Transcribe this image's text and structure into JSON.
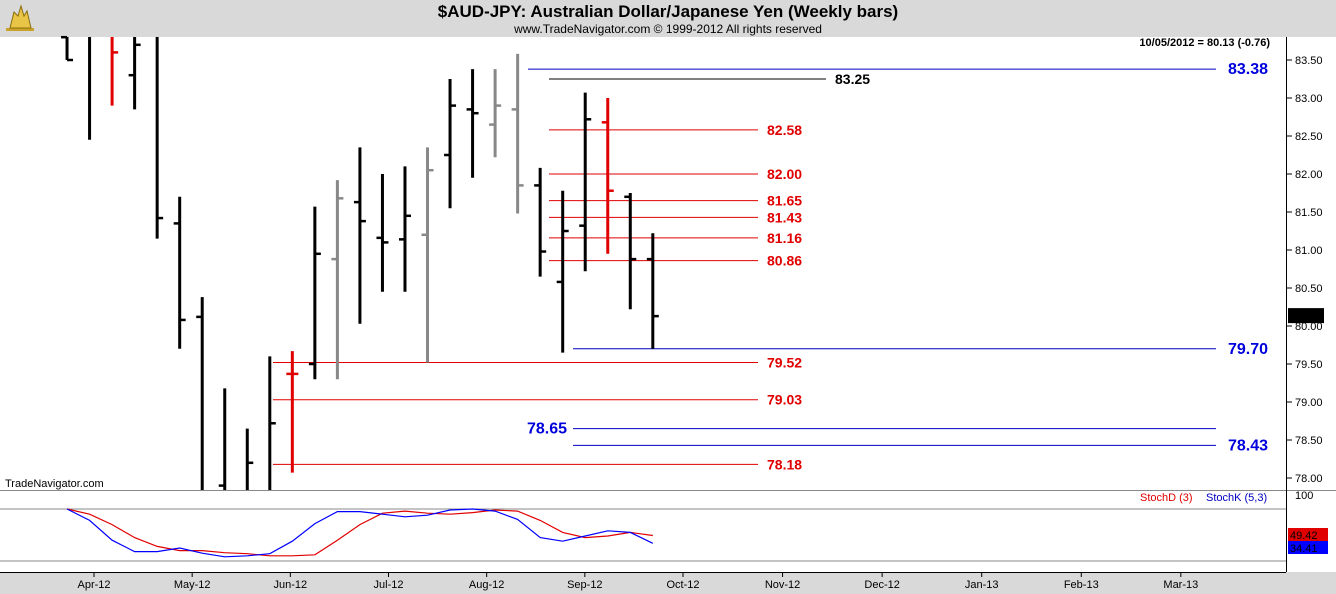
{
  "header": {
    "title": "$AUD-JPY:  Australian Dollar/Japanese Yen  (Weekly bars)",
    "subtitle": "www.TradeNavigator.com © 1999-2012 All rights reserved"
  },
  "watermark": "TradeNavigator.com",
  "colors": {
    "background": "#ffffff",
    "frame": "#d9d9d9",
    "up_bar": "#000000",
    "gray_bar": "#888888",
    "red_bar": "#e00000",
    "red_level": "#e00000",
    "blue_level": "#0000c0",
    "stochD": "#e00000",
    "stochK": "#0000ff"
  },
  "chart_data": [
    {
      "type": "ohlc",
      "title": "$AUD-JPY:  Australian Dollar/Japanese Yen  (Weekly bars)",
      "last_readout": "10/05/2012 = 80.13 (-0.76)",
      "last_price_label": "80.13",
      "ylim": [
        77.85,
        83.7
      ],
      "y_ticks": [
        "83.50",
        "83.00",
        "82.50",
        "82.00",
        "81.50",
        "81.00",
        "80.50",
        "80.00",
        "79.50",
        "79.00",
        "78.50",
        "78.00"
      ],
      "x_ticks": [
        "Apr-12",
        "May-12",
        "Jun-12",
        "Jul-12",
        "Aug-12",
        "Sep-12",
        "Oct-12",
        "Nov-12",
        "Dec-12",
        "Jan-13",
        "Feb-13",
        "Mar-13"
      ],
      "bars": [
        {
          "date": "2012-03-23",
          "open": 83.8,
          "high": 84.6,
          "low": 83.5,
          "close": 83.5,
          "color": "black"
        },
        {
          "date": "2012-03-30",
          "open": 84.3,
          "high": 84.5,
          "low": 82.45,
          "close": 84.0,
          "color": "black"
        },
        {
          "date": "2012-04-06",
          "open": 84.0,
          "high": 84.4,
          "low": 82.9,
          "close": 83.6,
          "color": "red"
        },
        {
          "date": "2012-04-13",
          "open": 83.3,
          "high": 84.3,
          "low": 82.85,
          "close": 83.7,
          "color": "black"
        },
        {
          "date": "2012-04-20",
          "open": 84.0,
          "high": 84.2,
          "low": 81.15,
          "close": 81.42,
          "color": "black"
        },
        {
          "date": "2012-04-27",
          "open": 81.35,
          "high": 81.7,
          "low": 79.7,
          "close": 80.08,
          "color": "black"
        },
        {
          "date": "2012-05-04",
          "open": 80.12,
          "high": 80.38,
          "low": 77.0,
          "close": 77.5,
          "color": "black"
        },
        {
          "date": "2012-05-11",
          "open": 77.9,
          "high": 79.18,
          "low": 76.9,
          "close": 77.3,
          "color": "black"
        },
        {
          "date": "2012-05-18",
          "open": 77.3,
          "high": 78.65,
          "low": 76.6,
          "close": 78.2,
          "color": "black"
        },
        {
          "date": "2012-05-25",
          "open": 77.2,
          "high": 79.6,
          "low": 76.9,
          "close": 78.72,
          "color": "black"
        },
        {
          "date": "2012-06-01",
          "open": 79.37,
          "high": 79.67,
          "low": 78.07,
          "close": 79.37,
          "color": "red"
        },
        {
          "date": "2012-06-08",
          "open": 79.5,
          "high": 81.57,
          "low": 79.3,
          "close": 80.95,
          "color": "black"
        },
        {
          "date": "2012-06-15",
          "open": 80.88,
          "high": 81.92,
          "low": 79.3,
          "close": 81.68,
          "color": "gray"
        },
        {
          "date": "2012-06-22",
          "open": 81.63,
          "high": 82.35,
          "low": 80.03,
          "close": 81.38,
          "color": "black"
        },
        {
          "date": "2012-06-29",
          "open": 81.16,
          "high": 82.0,
          "low": 80.45,
          "close": 81.1,
          "color": "black"
        },
        {
          "date": "2012-07-06",
          "open": 81.14,
          "high": 82.1,
          "low": 80.45,
          "close": 81.45,
          "color": "black"
        },
        {
          "date": "2012-07-13",
          "open": 81.2,
          "high": 82.35,
          "low": 79.52,
          "close": 82.05,
          "color": "gray"
        },
        {
          "date": "2012-07-20",
          "open": 82.25,
          "high": 83.25,
          "low": 81.55,
          "close": 82.9,
          "color": "black"
        },
        {
          "date": "2012-07-27",
          "open": 82.85,
          "high": 83.38,
          "low": 81.95,
          "close": 82.8,
          "color": "black"
        },
        {
          "date": "2012-08-03",
          "open": 82.65,
          "high": 83.38,
          "low": 82.22,
          "close": 82.9,
          "color": "gray"
        },
        {
          "date": "2012-08-10",
          "open": 82.85,
          "high": 83.58,
          "low": 81.48,
          "close": 81.85,
          "color": "gray"
        },
        {
          "date": "2012-08-17",
          "open": 81.85,
          "high": 82.08,
          "low": 80.65,
          "close": 80.98,
          "color": "black"
        },
        {
          "date": "2012-08-24",
          "open": 80.58,
          "high": 81.78,
          "low": 79.65,
          "close": 81.25,
          "color": "black"
        },
        {
          "date": "2012-08-31",
          "open": 81.32,
          "high": 83.07,
          "low": 80.72,
          "close": 82.72,
          "color": "black"
        },
        {
          "date": "2012-09-07",
          "open": 82.68,
          "high": 83.0,
          "low": 80.95,
          "close": 81.78,
          "color": "red"
        },
        {
          "date": "2012-09-14",
          "open": 81.7,
          "high": 81.75,
          "low": 80.22,
          "close": 80.88,
          "color": "black"
        },
        {
          "date": "2012-09-21",
          "open": 80.88,
          "high": 81.22,
          "low": 79.7,
          "close": 80.13,
          "color": "black"
        }
      ],
      "levels": [
        {
          "value": 83.38,
          "label": "83.38",
          "color": "blue"
        },
        {
          "value": 83.25,
          "label": "83.25",
          "color": "black"
        },
        {
          "value": 82.58,
          "label": "82.58",
          "color": "red"
        },
        {
          "value": 82.0,
          "label": "82.00",
          "color": "red"
        },
        {
          "value": 81.65,
          "label": "81.65",
          "color": "red"
        },
        {
          "value": 81.43,
          "label": "81.43",
          "color": "red"
        },
        {
          "value": 81.16,
          "label": "81.16",
          "color": "red"
        },
        {
          "value": 80.86,
          "label": "80.86",
          "color": "red"
        },
        {
          "value": 79.7,
          "label": "79.70",
          "color": "blue"
        },
        {
          "value": 79.52,
          "label": "79.52",
          "color": "red"
        },
        {
          "value": 79.03,
          "label": "79.03",
          "color": "red"
        },
        {
          "value": 78.65,
          "label": "78.65",
          "color": "blue"
        },
        {
          "value": 78.43,
          "label": "78.43",
          "color": "blue"
        },
        {
          "value": 78.18,
          "label": "78.18",
          "color": "red"
        }
      ]
    },
    {
      "type": "line",
      "title": "",
      "ylim": [
        0,
        100
      ],
      "y_ticks": [
        "100"
      ],
      "legend": "top-right",
      "series": [
        {
          "name": "StochD (3)",
          "color": "red",
          "last_label": "49.42",
          "values": [
            100,
            90,
            70,
            45,
            28,
            20,
            20,
            16,
            14,
            10,
            10,
            12,
            40,
            70,
            92,
            96,
            92,
            90,
            93,
            98,
            96,
            78,
            55,
            45,
            48,
            55,
            49
          ]
        },
        {
          "name": "StochK (5,3)",
          "color": "blue",
          "last_label": "34.41",
          "values": [
            100,
            78,
            40,
            18,
            18,
            25,
            15,
            8,
            10,
            14,
            38,
            72,
            95,
            95,
            90,
            85,
            88,
            98,
            100,
            96,
            80,
            45,
            38,
            48,
            58,
            55,
            34
          ]
        }
      ]
    }
  ]
}
